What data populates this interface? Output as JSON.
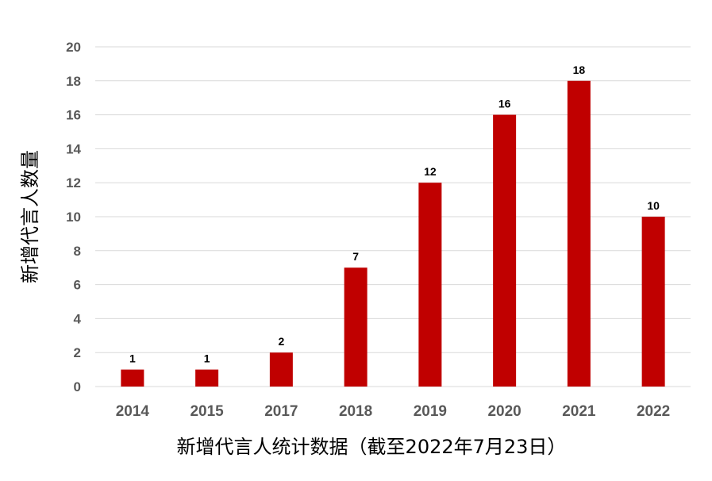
{
  "chart_data": {
    "type": "bar",
    "categories": [
      "2014",
      "2015",
      "2017",
      "2018",
      "2019",
      "2020",
      "2021",
      "2022"
    ],
    "series": [
      {
        "values": [
          1,
          1,
          2,
          7,
          12,
          16,
          18,
          10
        ],
        "color": "#c00000"
      }
    ],
    "title": "",
    "xlabel": "新增代言人统计数据（截至2022年7月23日）",
    "ylabel": "新增代言人数量",
    "ylim": [
      0,
      20
    ],
    "yticks": [
      0,
      2,
      4,
      6,
      8,
      10,
      12,
      14,
      16,
      18,
      20
    ],
    "data_labels": [
      "1",
      "1",
      "2",
      "7",
      "12",
      "16",
      "18",
      "10"
    ],
    "grid": "horizontal",
    "legend": "none"
  },
  "colors": {
    "bar": "#c00000",
    "gridline": "#d9d9d9",
    "tick_text": "#595959",
    "label_text": "#000000"
  }
}
